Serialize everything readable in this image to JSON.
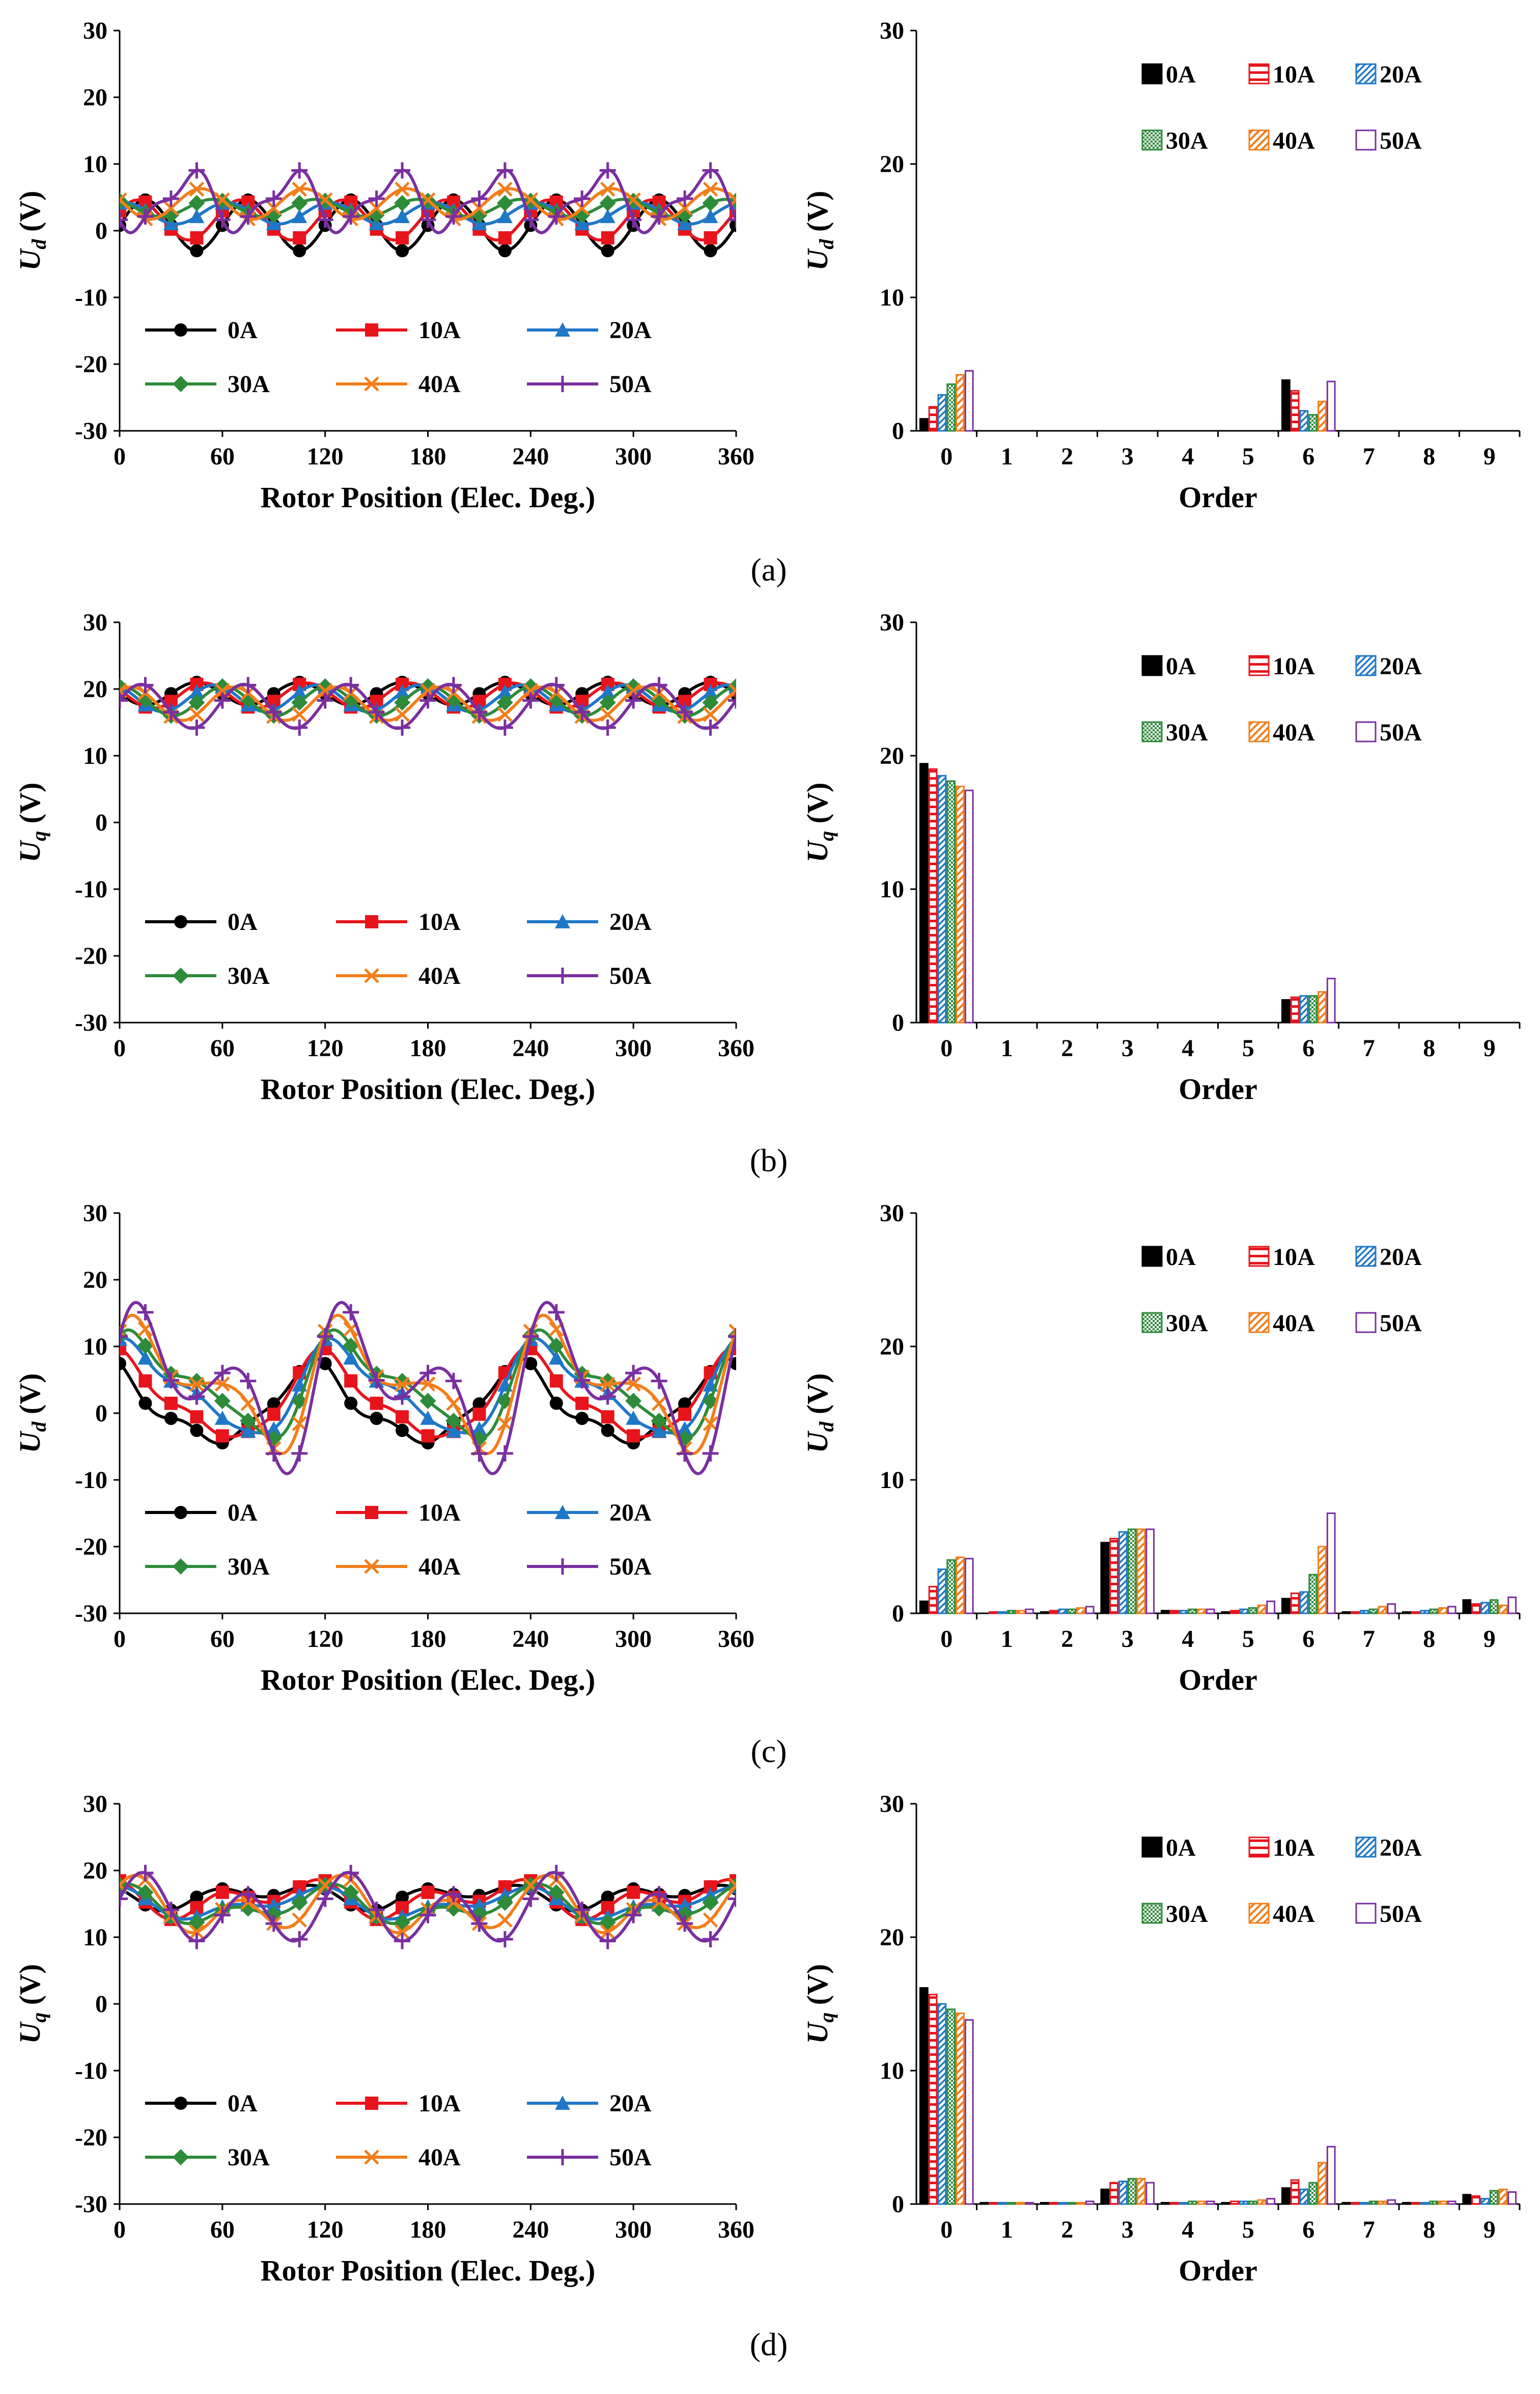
{
  "colors": {
    "0A": "#000000",
    "10A": "#e8141c",
    "20A": "#1f77c8",
    "30A": "#2e8b3a",
    "40A": "#f27e1b",
    "50A": "#7a2fa0"
  },
  "legend_labels": [
    "0A",
    "10A",
    "20A",
    "30A",
    "40A",
    "50A"
  ],
  "chart_data": [
    {
      "id": "a-wave",
      "type": "line",
      "caption": "(a)",
      "xlabel": "Rotor Position (Elec. Deg.)",
      "ylabel": "Ud (V)",
      "ylabel_main": "U",
      "ylabel_sub": "d",
      "ylabel_tail": " (V)",
      "xlim": [
        0,
        360
      ],
      "ylim": [
        -30,
        30
      ],
      "xticks": [
        "0",
        "60",
        "120",
        "180",
        "240",
        "300",
        "360"
      ],
      "yticks": [
        "-30",
        "-20",
        "-10",
        "0",
        "10",
        "20",
        "30"
      ],
      "harmonics": [
        [
          [
            0,
            0
          ],
          [
            1,
            0
          ],
          [
            2,
            0
          ],
          [
            3,
            0
          ],
          [
            4,
            0
          ],
          [
            5,
            0
          ],
          [
            6,
            0
          ]
        ],
        [
          [
            0,
            0
          ],
          [
            1,
            0
          ],
          [
            2,
            0
          ],
          [
            3,
            0
          ],
          [
            4,
            0
          ],
          [
            5,
            0
          ],
          [
            6,
            0
          ]
        ],
        [
          [
            0,
            0
          ],
          [
            1,
            0
          ],
          [
            2,
            0
          ],
          [
            3,
            0
          ],
          [
            4,
            0
          ],
          [
            5,
            0
          ],
          [
            6,
            0
          ]
        ],
        [
          [
            0,
            0
          ],
          [
            1,
            0
          ],
          [
            2,
            0
          ],
          [
            3,
            0
          ],
          [
            4,
            0
          ],
          [
            5,
            0
          ],
          [
            6,
            0
          ]
        ],
        [
          [
            0,
            0
          ],
          [
            1,
            0
          ],
          [
            2,
            0
          ],
          [
            3,
            0
          ],
          [
            4,
            0
          ],
          [
            5,
            0
          ],
          [
            6,
            0
          ]
        ],
        [
          [
            0,
            0
          ],
          [
            1,
            0
          ],
          [
            2,
            0
          ],
          [
            3,
            0
          ],
          [
            4,
            0
          ],
          [
            5,
            0
          ],
          [
            6,
            0
          ]
        ]
      ],
      "series": [
        {
          "name": "0A",
          "dc": 0.8,
          "comps": [
            [
              6,
              3.8,
              -1.57
            ]
          ]
        },
        {
          "name": "10A",
          "dc": 1.6,
          "comps": [
            [
              6,
              3.0,
              -1.1
            ]
          ]
        },
        {
          "name": "20A",
          "dc": 2.6,
          "comps": [
            [
              6,
              1.6,
              -0.3
            ]
          ]
        },
        {
          "name": "30A",
          "dc": 3.4,
          "comps": [
            [
              6,
              1.3,
              0.6
            ]
          ]
        },
        {
          "name": "40A",
          "dc": 4.0,
          "comps": [
            [
              6,
              2.3,
              1.3
            ]
          ]
        },
        {
          "name": "50A",
          "dc": 4.4,
          "comps": [
            [
              6,
              3.8,
              2.0
            ],
            [
              12,
              1.6,
              2.4
            ]
          ]
        }
      ],
      "legend": {
        "position": "bottom-inside"
      }
    },
    {
      "id": "a-bar",
      "type": "bar",
      "xlabel": "Order",
      "ylabel_main": "U",
      "ylabel_sub": "d",
      "ylabel_tail": " (V)",
      "ylim": [
        0,
        30
      ],
      "yticks": [
        "0",
        "10",
        "20",
        "30"
      ],
      "categories": [
        "0",
        "1",
        "2",
        "3",
        "4",
        "5",
        "6",
        "7",
        "8",
        "9"
      ],
      "series": [
        {
          "name": "0A",
          "values": [
            0.9,
            0,
            0,
            0,
            0,
            0,
            3.8,
            0,
            0,
            0
          ]
        },
        {
          "name": "10A",
          "values": [
            1.8,
            0,
            0,
            0,
            0,
            0,
            3.0,
            0,
            0,
            0
          ]
        },
        {
          "name": "20A",
          "values": [
            2.7,
            0,
            0,
            0,
            0,
            0,
            1.5,
            0,
            0,
            0
          ]
        },
        {
          "name": "30A",
          "values": [
            3.5,
            0,
            0,
            0,
            0,
            0,
            1.2,
            0,
            0,
            0
          ]
        },
        {
          "name": "40A",
          "values": [
            4.2,
            0,
            0,
            0,
            0,
            0,
            2.2,
            0,
            0,
            0
          ]
        },
        {
          "name": "50A",
          "values": [
            4.5,
            0,
            0,
            0,
            0,
            0,
            3.7,
            0,
            0,
            0
          ]
        }
      ],
      "legend": {
        "position": "top-right"
      }
    },
    {
      "id": "b-wave",
      "type": "line",
      "caption": "(b)",
      "xlabel": "Rotor Position (Elec. Deg.)",
      "ylabel_main": "U",
      "ylabel_sub": "q",
      "ylabel_tail": " (V)",
      "xlim": [
        0,
        360
      ],
      "ylim": [
        -30,
        30
      ],
      "xticks": [
        "0",
        "60",
        "120",
        "180",
        "240",
        "300",
        "360"
      ],
      "yticks": [
        "-30",
        "-20",
        "-10",
        "0",
        "10",
        "20",
        "30"
      ],
      "series": [
        {
          "name": "0A",
          "dc": 19.3,
          "comps": [
            [
              6,
              1.7,
              1.57
            ]
          ]
        },
        {
          "name": "10A",
          "dc": 19.0,
          "comps": [
            [
              6,
              1.9,
              1.1
            ]
          ]
        },
        {
          "name": "20A",
          "dc": 18.6,
          "comps": [
            [
              6,
              2.0,
              0.5
            ]
          ]
        },
        {
          "name": "30A",
          "dc": 18.2,
          "comps": [
            [
              6,
              2.2,
              -0.1
            ]
          ]
        },
        {
          "name": "40A",
          "dc": 17.8,
          "comps": [
            [
              6,
              2.5,
              -0.7
            ]
          ]
        },
        {
          "name": "50A",
          "dc": 17.4,
          "comps": [
            [
              6,
              3.3,
              -1.3
            ]
          ]
        }
      ],
      "legend": {
        "position": "bottom-inside"
      }
    },
    {
      "id": "b-bar",
      "type": "bar",
      "xlabel": "Order",
      "ylabel_main": "U",
      "ylabel_sub": "q",
      "ylabel_tail": " (V)",
      "ylim": [
        0,
        30
      ],
      "yticks": [
        "0",
        "10",
        "20",
        "30"
      ],
      "categories": [
        "0",
        "1",
        "2",
        "3",
        "4",
        "5",
        "6",
        "7",
        "8",
        "9"
      ],
      "series": [
        {
          "name": "0A",
          "values": [
            19.4,
            0,
            0,
            0,
            0,
            0,
            1.7,
            0,
            0,
            0
          ]
        },
        {
          "name": "10A",
          "values": [
            19.0,
            0,
            0,
            0,
            0,
            0,
            1.9,
            0,
            0,
            0
          ]
        },
        {
          "name": "20A",
          "values": [
            18.5,
            0,
            0,
            0,
            0,
            0,
            2.0,
            0,
            0,
            0
          ]
        },
        {
          "name": "30A",
          "values": [
            18.1,
            0,
            0,
            0,
            0,
            0,
            2.0,
            0,
            0,
            0
          ]
        },
        {
          "name": "40A",
          "values": [
            17.7,
            0,
            0,
            0,
            0,
            0,
            2.3,
            0,
            0,
            0
          ]
        },
        {
          "name": "50A",
          "values": [
            17.4,
            0,
            0,
            0,
            0,
            0,
            3.3,
            0,
            0,
            0
          ]
        }
      ],
      "legend": {
        "position": "top-right"
      }
    },
    {
      "id": "c-wave",
      "type": "line",
      "caption": "(c)",
      "xlabel": "Rotor Position (Elec. Deg.)",
      "ylabel_main": "U",
      "ylabel_sub": "d",
      "ylabel_tail": " (V)",
      "xlim": [
        0,
        360
      ],
      "ylim": [
        -30,
        30
      ],
      "xticks": [
        "0",
        "60",
        "120",
        "180",
        "240",
        "300",
        "360"
      ],
      "yticks": [
        "-30",
        "-20",
        "-10",
        "0",
        "10",
        "20",
        "30"
      ],
      "series": [
        {
          "name": "0A",
          "dc": 0.9,
          "comps": [
            [
              3,
              5.3,
              0.3
            ],
            [
              6,
              1.1,
              1.0
            ],
            [
              9,
              1.0,
              0.5
            ]
          ]
        },
        {
          "name": "10A",
          "dc": 1.9,
          "comps": [
            [
              3,
              5.8,
              -0.1
            ],
            [
              6,
              1.5,
              0.6
            ],
            [
              9,
              0.8,
              0.3
            ]
          ]
        },
        {
          "name": "20A",
          "dc": 3.2,
          "comps": [
            [
              3,
              6.2,
              -0.6
            ],
            [
              6,
              2.0,
              0.2
            ],
            [
              9,
              0.8,
              0.1
            ]
          ]
        },
        {
          "name": "30A",
          "dc": 3.9,
          "comps": [
            [
              3,
              6.3,
              -0.9
            ],
            [
              6,
              2.9,
              -0.2
            ],
            [
              9,
              1.0,
              -0.1
            ]
          ]
        },
        {
          "name": "40A",
          "dc": 4.2,
          "comps": [
            [
              3,
              6.4,
              -1.1
            ],
            [
              6,
              5.0,
              -0.6
            ],
            [
              9,
              1.1,
              -0.3
            ]
          ]
        },
        {
          "name": "50A",
          "dc": 4.1,
          "comps": [
            [
              3,
              6.3,
              -1.3
            ],
            [
              6,
              7.5,
              -0.9
            ],
            [
              9,
              1.2,
              -0.5
            ]
          ]
        }
      ],
      "legend": {
        "position": "bottom-inside"
      }
    },
    {
      "id": "c-bar",
      "type": "bar",
      "xlabel": "Order",
      "ylabel_main": "U",
      "ylabel_sub": "d",
      "ylabel_tail": " (V)",
      "ylim": [
        0,
        30
      ],
      "yticks": [
        "0",
        "10",
        "20",
        "30"
      ],
      "categories": [
        "0",
        "1",
        "2",
        "3",
        "4",
        "5",
        "6",
        "7",
        "8",
        "9"
      ],
      "series": [
        {
          "name": "0A",
          "values": [
            0.9,
            0.0,
            0.1,
            5.3,
            0.2,
            0.1,
            1.1,
            0.1,
            0.1,
            1.0
          ]
        },
        {
          "name": "10A",
          "values": [
            2.0,
            0.1,
            0.2,
            5.6,
            0.2,
            0.2,
            1.5,
            0.1,
            0.1,
            0.7
          ]
        },
        {
          "name": "20A",
          "values": [
            3.3,
            0.1,
            0.3,
            6.1,
            0.2,
            0.3,
            1.6,
            0.2,
            0.2,
            0.8
          ]
        },
        {
          "name": "30A",
          "values": [
            4.0,
            0.2,
            0.3,
            6.3,
            0.3,
            0.4,
            2.9,
            0.3,
            0.3,
            1.0
          ]
        },
        {
          "name": "40A",
          "values": [
            4.2,
            0.2,
            0.4,
            6.3,
            0.3,
            0.6,
            5.0,
            0.5,
            0.4,
            0.6
          ]
        },
        {
          "name": "50A",
          "values": [
            4.1,
            0.3,
            0.5,
            6.3,
            0.3,
            0.9,
            7.5,
            0.7,
            0.5,
            1.2
          ]
        }
      ],
      "legend": {
        "position": "top-right"
      }
    },
    {
      "id": "d-wave",
      "type": "line",
      "caption": "(d)",
      "xlabel": "Rotor Position (Elec. Deg.)",
      "ylabel_main": "U",
      "ylabel_sub": "q",
      "ylabel_tail": " (V)",
      "xlim": [
        0,
        360
      ],
      "ylim": [
        -30,
        30
      ],
      "xticks": [
        "0",
        "60",
        "120",
        "180",
        "240",
        "300",
        "360"
      ],
      "yticks": [
        "-30",
        "-20",
        "-10",
        "0",
        "10",
        "20",
        "30"
      ],
      "series": [
        {
          "name": "0A",
          "dc": 16.2,
          "comps": [
            [
              3,
              1.1,
              1.57
            ],
            [
              6,
              1.2,
              0.5
            ]
          ]
        },
        {
          "name": "10A",
          "dc": 15.8,
          "comps": [
            [
              3,
              1.6,
              1.0
            ],
            [
              6,
              1.8,
              0.1
            ]
          ]
        },
        {
          "name": "20A",
          "dc": 15.0,
          "comps": [
            [
              3,
              1.7,
              0.5
            ],
            [
              6,
              1.1,
              -0.3
            ]
          ]
        },
        {
          "name": "30A",
          "dc": 14.6,
          "comps": [
            [
              3,
              1.9,
              0.1
            ],
            [
              6,
              1.6,
              -0.6
            ]
          ]
        },
        {
          "name": "40A",
          "dc": 14.3,
          "comps": [
            [
              3,
              1.9,
              -0.3
            ],
            [
              6,
              3.1,
              -1.0
            ]
          ]
        },
        {
          "name": "50A",
          "dc": 13.8,
          "comps": [
            [
              3,
              1.6,
              -0.7
            ],
            [
              6,
              4.3,
              -1.4
            ]
          ]
        }
      ],
      "legend": {
        "position": "bottom-inside"
      }
    },
    {
      "id": "d-bar",
      "type": "bar",
      "xlabel": "Order",
      "ylabel_main": "U",
      "ylabel_sub": "q",
      "ylabel_tail": " (V)",
      "ylim": [
        0,
        30
      ],
      "yticks": [
        "0",
        "10",
        "20",
        "30"
      ],
      "categories": [
        "0",
        "1",
        "2",
        "3",
        "4",
        "5",
        "6",
        "7",
        "8",
        "9"
      ],
      "series": [
        {
          "name": "0A",
          "values": [
            16.2,
            0.1,
            0.1,
            1.1,
            0.1,
            0.1,
            1.2,
            0.1,
            0.1,
            0.7
          ]
        },
        {
          "name": "10A",
          "values": [
            15.7,
            0.1,
            0.1,
            1.6,
            0.1,
            0.2,
            1.8,
            0.1,
            0.1,
            0.6
          ]
        },
        {
          "name": "20A",
          "values": [
            15.0,
            0.1,
            0.1,
            1.7,
            0.1,
            0.2,
            1.1,
            0.1,
            0.1,
            0.4
          ]
        },
        {
          "name": "30A",
          "values": [
            14.6,
            0.1,
            0.1,
            1.9,
            0.2,
            0.2,
            1.6,
            0.2,
            0.2,
            1.0
          ]
        },
        {
          "name": "40A",
          "values": [
            14.3,
            0.1,
            0.1,
            1.9,
            0.2,
            0.3,
            3.1,
            0.2,
            0.2,
            1.1
          ]
        },
        {
          "name": "50A",
          "values": [
            13.8,
            0.1,
            0.2,
            1.6,
            0.2,
            0.4,
            4.3,
            0.3,
            0.2,
            0.9
          ]
        }
      ],
      "legend": {
        "position": "top-right"
      }
    }
  ]
}
